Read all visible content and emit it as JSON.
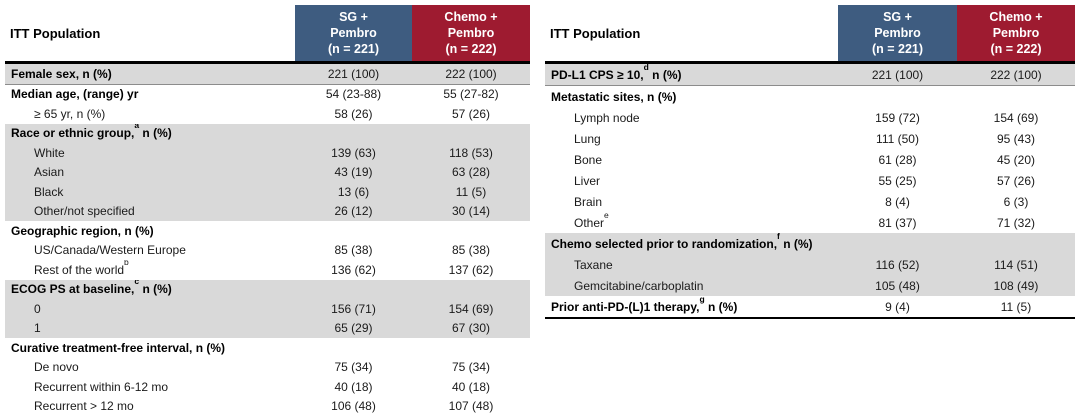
{
  "colors": {
    "sg_arm_bg": "#3E5C80",
    "chemo_arm_bg": "#9E1B30",
    "arm_text": "#FFFFFF",
    "row_shade": "#D9D9D9",
    "body_text": "#1A1A1A",
    "rule": "#000000"
  },
  "tables": [
    {
      "corner_label": "ITT Population",
      "col_headers": [
        "SG +\nPembro\n(n = 221)",
        "Chemo +\nPembro\n(n = 222)"
      ],
      "rows": [
        {
          "label": "Female sex, n (%)",
          "bold": true,
          "indent": false,
          "shade": "gray",
          "values": [
            "221 (100)",
            "222 (100)"
          ]
        },
        {
          "label": "Median age, (range) yr",
          "bold": true,
          "indent": false,
          "shade": "white",
          "values": [
            "54 (23-88)",
            "55 (27-82)"
          ]
        },
        {
          "label": "≥ 65 yr, n (%)",
          "bold": false,
          "indent": true,
          "shade": "white",
          "values": [
            "58 (26)",
            "57 (26)"
          ]
        },
        {
          "label": "Race or ethnic group,",
          "sup": "a",
          "suffix": " n (%)",
          "bold": true,
          "indent": false,
          "shade": "gray",
          "values": [
            "",
            ""
          ]
        },
        {
          "label": "White",
          "bold": false,
          "indent": true,
          "shade": "gray",
          "values": [
            "139 (63)",
            "118 (53)"
          ]
        },
        {
          "label": "Asian",
          "bold": false,
          "indent": true,
          "shade": "gray",
          "values": [
            "43 (19)",
            "63 (28)"
          ]
        },
        {
          "label": "Black",
          "bold": false,
          "indent": true,
          "shade": "gray",
          "values": [
            "13 (6)",
            "11 (5)"
          ]
        },
        {
          "label": "Other/not specified",
          "bold": false,
          "indent": true,
          "shade": "gray",
          "values": [
            "26 (12)",
            "30 (14)"
          ]
        },
        {
          "label": "Geographic region, n (%)",
          "bold": true,
          "indent": false,
          "shade": "white",
          "values": [
            "",
            ""
          ]
        },
        {
          "label": "US/Canada/Western Europe",
          "bold": false,
          "indent": true,
          "shade": "white",
          "values": [
            "85 (38)",
            "85 (38)"
          ]
        },
        {
          "label": "Rest of the world",
          "sup": "b",
          "suffix": "",
          "bold": false,
          "indent": true,
          "shade": "white",
          "values": [
            "136 (62)",
            "137 (62)"
          ]
        },
        {
          "label": "ECOG PS at baseline,",
          "sup": "c",
          "suffix": " n (%)",
          "bold": true,
          "indent": false,
          "shade": "gray",
          "values": [
            "",
            ""
          ]
        },
        {
          "label": "0",
          "bold": false,
          "indent": true,
          "shade": "gray",
          "values": [
            "156 (71)",
            "154 (69)"
          ]
        },
        {
          "label": "1",
          "bold": false,
          "indent": true,
          "shade": "gray",
          "values": [
            "65 (29)",
            "67 (30)"
          ]
        },
        {
          "label": "Curative treatment-free interval, n (%)",
          "bold": true,
          "indent": false,
          "shade": "white",
          "values": [
            "",
            ""
          ]
        },
        {
          "label": "De novo",
          "bold": false,
          "indent": true,
          "shade": "white",
          "values": [
            "75 (34)",
            "75 (34)"
          ]
        },
        {
          "label": "Recurrent within 6-12 mo",
          "bold": false,
          "indent": true,
          "shade": "white",
          "values": [
            "40 (18)",
            "40 (18)"
          ]
        },
        {
          "label": "Recurrent > 12 mo",
          "bold": false,
          "indent": true,
          "shade": "white",
          "values": [
            "106 (48)",
            "107 (48)"
          ]
        }
      ]
    },
    {
      "corner_label": "ITT Population",
      "col_headers": [
        "SG +\nPembro\n(n = 221)",
        "Chemo +\nPembro\n(n = 222)"
      ],
      "rows": [
        {
          "label": "PD-L1 CPS ≥ 10,",
          "sup": "d",
          "suffix": " n (%)",
          "bold": true,
          "indent": false,
          "shade": "gray",
          "values": [
            "221 (100)",
            "222 (100)"
          ]
        },
        {
          "label": "Metastatic sites, n (%)",
          "bold": true,
          "indent": false,
          "shade": "white",
          "values": [
            "",
            ""
          ]
        },
        {
          "label": "Lymph node",
          "bold": false,
          "indent": true,
          "shade": "white",
          "values": [
            "159 (72)",
            "154 (69)"
          ]
        },
        {
          "label": "Lung",
          "bold": false,
          "indent": true,
          "shade": "white",
          "values": [
            "111 (50)",
            "95 (43)"
          ]
        },
        {
          "label": "Bone",
          "bold": false,
          "indent": true,
          "shade": "white",
          "values": [
            "61 (28)",
            "45 (20)"
          ]
        },
        {
          "label": "Liver",
          "bold": false,
          "indent": true,
          "shade": "white",
          "values": [
            "55 (25)",
            "57 (26)"
          ]
        },
        {
          "label": "Brain",
          "bold": false,
          "indent": true,
          "shade": "white",
          "values": [
            "8 (4)",
            "6 (3)"
          ]
        },
        {
          "label": "Other",
          "sup": "e",
          "suffix": "",
          "bold": false,
          "indent": true,
          "shade": "white",
          "values": [
            "81 (37)",
            "71 (32)"
          ]
        },
        {
          "label": "Chemo selected prior to randomization,",
          "sup": "f",
          "suffix": " n (%)",
          "bold": true,
          "indent": false,
          "shade": "gray",
          "values": [
            "",
            ""
          ]
        },
        {
          "label": "Taxane",
          "bold": false,
          "indent": true,
          "shade": "gray",
          "values": [
            "116 (52)",
            "114 (51)"
          ]
        },
        {
          "label": "Gemcitabine/carboplatin",
          "bold": false,
          "indent": true,
          "shade": "gray",
          "values": [
            "105 (48)",
            "108 (49)"
          ]
        },
        {
          "label": "Prior anti-PD-(L)1 therapy,",
          "sup": "g",
          "suffix": " n (%)",
          "bold": true,
          "indent": false,
          "shade": "white",
          "values": [
            "9 (4)",
            "11 (5)"
          ]
        }
      ]
    }
  ]
}
